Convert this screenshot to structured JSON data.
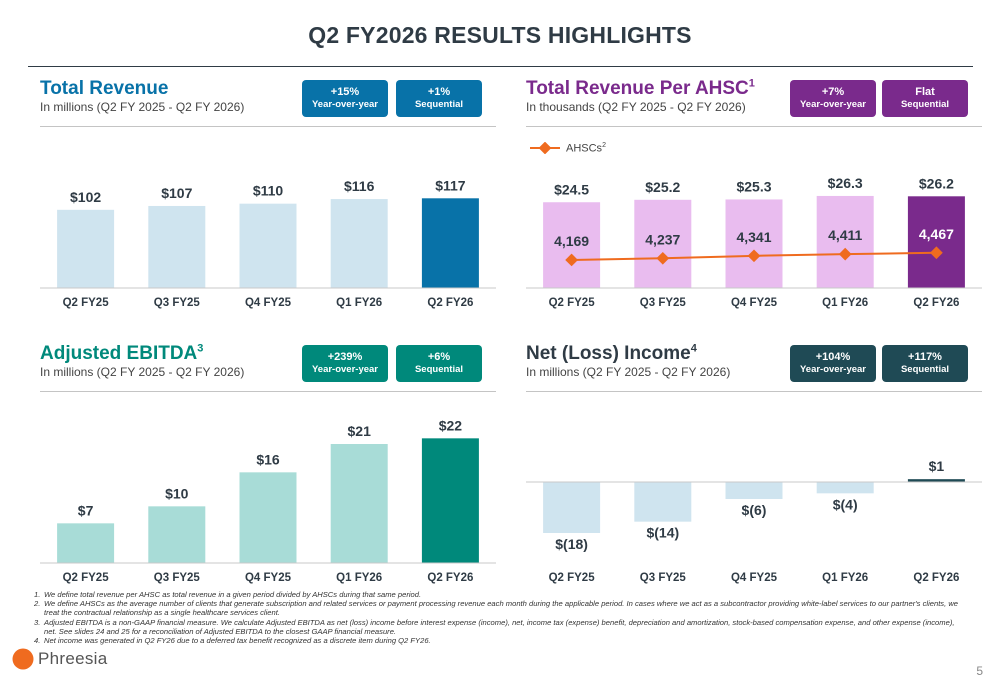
{
  "page": {
    "title": "Q2 FY2026 RESULTS HIGHLIGHTS",
    "page_number": "5",
    "logo_text": "Phreesia",
    "colors": {
      "title": "#2f3b45",
      "light_blue": "#cfe4ef",
      "dark_blue": "#0872a8",
      "light_purple": "#e9bcef",
      "dark_purple": "#7a2a8c",
      "light_teal": "#a8dcd7",
      "dark_teal": "#00897b",
      "dark_slate": "#1f4a55",
      "orange": "#ef6b1f"
    }
  },
  "badges": {
    "revenue": [
      {
        "value": "+15%",
        "label": "Year-over-year"
      },
      {
        "value": "+1%",
        "label": "Sequential"
      }
    ],
    "ahsc": [
      {
        "value": "+7%",
        "label": "Year-over-year"
      },
      {
        "value": "Flat",
        "label": "Sequential"
      }
    ],
    "ebitda": [
      {
        "value": "+239%",
        "label": "Year-over-year"
      },
      {
        "value": "+6%",
        "label": "Sequential"
      }
    ],
    "net": [
      {
        "value": "+104%",
        "label": "Year-over-year"
      },
      {
        "value": "+117%",
        "label": "Sequential"
      }
    ]
  },
  "panels": {
    "revenue": {
      "title": "Total Revenue",
      "sup": "",
      "subtitle": "In millions (Q2 FY 2025 - Q2 FY 2026)"
    },
    "ahsc": {
      "title": "Total Revenue Per AHSC",
      "sup": "1",
      "subtitle": "In thousands (Q2 FY 2025 - Q2 FY 2026)",
      "legend": "AHSCs",
      "legend_sup": "2"
    },
    "ebitda": {
      "title": "Adjusted EBITDA",
      "sup": "3",
      "subtitle": "In millions (Q2 FY 2025 - Q2 FY 2026)"
    },
    "net": {
      "title": "Net (Loss) Income",
      "sup": "4",
      "subtitle": "In millions (Q2 FY 2025 - Q2 FY 2026)"
    }
  },
  "chart_data": [
    {
      "id": "revenue",
      "type": "bar",
      "title": "Total Revenue",
      "categories": [
        "Q2 FY25",
        "Q3 FY25",
        "Q4 FY25",
        "Q1 FY26",
        "Q2 FY26"
      ],
      "values": [
        102,
        107,
        110,
        116,
        117
      ],
      "labels": [
        "$102",
        "$107",
        "$110",
        "$116",
        "$117"
      ],
      "colors": [
        "#cfe4ef",
        "#cfe4ef",
        "#cfe4ef",
        "#cfe4ef",
        "#0872a8"
      ]
    },
    {
      "id": "ahsc",
      "type": "bar",
      "title": "Total Revenue Per AHSC",
      "categories": [
        "Q2 FY25",
        "Q3 FY25",
        "Q4 FY25",
        "Q1 FY26",
        "Q2 FY26"
      ],
      "values": [
        24.5,
        25.2,
        25.3,
        26.3,
        26.2
      ],
      "labels": [
        "$24.5",
        "$25.2",
        "$25.3",
        "$26.3",
        "$26.2"
      ],
      "colors": [
        "#e9bcef",
        "#e9bcef",
        "#e9bcef",
        "#e9bcef",
        "#7a2a8c"
      ],
      "line_series": {
        "name": "AHSCs",
        "values": [
          4169,
          4237,
          4341,
          4411,
          4467
        ],
        "labels": [
          "4,169",
          "4,237",
          "4,341",
          "4,411",
          "4,467"
        ]
      }
    },
    {
      "id": "ebitda",
      "type": "bar",
      "title": "Adjusted EBITDA",
      "categories": [
        "Q2 FY25",
        "Q3 FY25",
        "Q4 FY25",
        "Q1 FY26",
        "Q2 FY26"
      ],
      "values": [
        7,
        10,
        16,
        21,
        22
      ],
      "labels": [
        "$7",
        "$10",
        "$16",
        "$21",
        "$22"
      ],
      "colors": [
        "#a8dcd7",
        "#a8dcd7",
        "#a8dcd7",
        "#a8dcd7",
        "#00897b"
      ]
    },
    {
      "id": "net",
      "type": "bar",
      "title": "Net (Loss) Income",
      "categories": [
        "Q2 FY25",
        "Q3 FY25",
        "Q4 FY25",
        "Q1 FY26",
        "Q2 FY26"
      ],
      "values": [
        -18,
        -14,
        -6,
        -4,
        1
      ],
      "labels": [
        "$(18)",
        "$(14)",
        "$(6)",
        "$(4)",
        "$1"
      ],
      "colors": [
        "#cfe4ef",
        "#cfe4ef",
        "#cfe4ef",
        "#cfe4ef",
        "#1f4a55"
      ]
    }
  ],
  "footnotes": [
    {
      "num": "1.",
      "text": "We define total revenue per AHSC as total revenue in a given period divided by AHSCs during that same period."
    },
    {
      "num": "2.",
      "text": "We define AHSCs as the average number of clients that generate subscription and related services or payment processing revenue each month during the applicable period. In cases where we act as a subcontractor providing white-label services to our partner's clients, we treat the contractual relationship as a single healthcare services client."
    },
    {
      "num": "3.",
      "text": "Adjusted EBITDA is a non-GAAP financial measure. We calculate Adjusted EBITDA as net (loss) income before interest expense (income), net, income tax (expense) benefit, depreciation and amortization, stock-based compensation expense, and other expense (income), net. See slides 24 and 25 for a reconciliation of Adjusted EBITDA to the closest GAAP financial measure."
    },
    {
      "num": "4.",
      "text": "Net income was generated in Q2 FY26 due to a deferred tax benefit recognized as a discrete item during Q2 FY26."
    }
  ]
}
